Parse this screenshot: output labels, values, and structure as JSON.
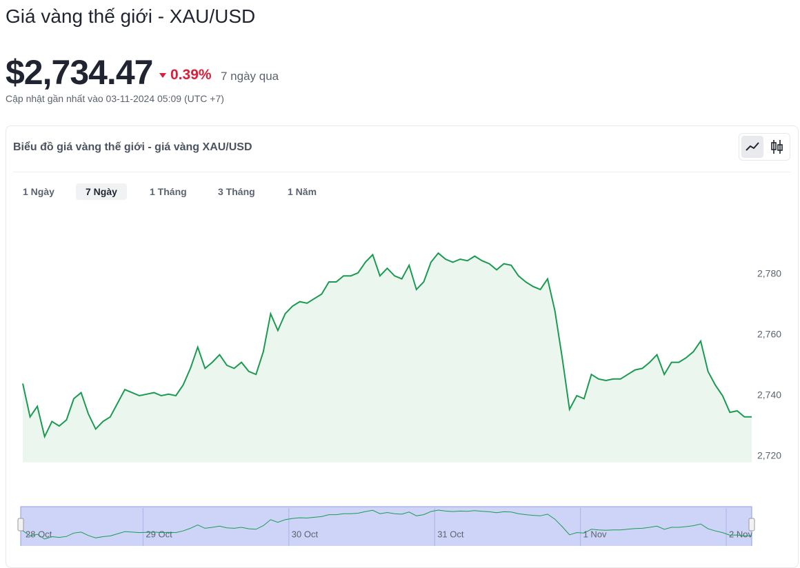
{
  "header": {
    "title": "Giá vàng thế giới - XAU/USD",
    "price": "$2,734.47",
    "change": "0.39%",
    "change_period": "7 ngày qua",
    "updated": "Cập nhật gần nhất vào 03-11-2024 05:09 (UTC +7)"
  },
  "card": {
    "title": "Biểu đồ giá vàng thế giới - giá vàng XAU/USD",
    "tabs": [
      "1 Ngày",
      "7 Ngày",
      "1 Tháng",
      "3 Tháng",
      "1 Năm"
    ],
    "active_tab": 1
  },
  "chart_data": {
    "type": "line",
    "color": "#1a9a50",
    "area_color": "#eaf6ee",
    "values": [
      2744,
      2733,
      2736.5,
      2726.5,
      2731.5,
      2730,
      2732,
      2739,
      2741,
      2734,
      2729,
      2731.5,
      2733,
      2737.5,
      2742,
      2741,
      2740,
      2740.5,
      2741,
      2740,
      2740.5,
      2740,
      2743.5,
      2749,
      2756,
      2749,
      2751,
      2753.5,
      2750,
      2749,
      2751,
      2748,
      2747,
      2754.5,
      2767,
      2761.5,
      2767,
      2769.5,
      2771,
      2770.5,
      2772,
      2773.5,
      2777.5,
      2777.5,
      2779.5,
      2779.5,
      2780.5,
      2784,
      2786.5,
      2779.5,
      2782,
      2779.5,
      2778.5,
      2783,
      2775,
      2777.5,
      2784,
      2787,
      2785,
      2784,
      2785,
      2784.5,
      2786,
      2784.5,
      2783.5,
      2781.5,
      2783.5,
      2783,
      2779.5,
      2777.5,
      2776,
      2775,
      2778.5,
      2768,
      2752.5,
      2735.5,
      2740,
      2739,
      2747,
      2745.5,
      2745,
      2745.5,
      2745.5,
      2747,
      2748.5,
      2749,
      2751,
      2753.5,
      2747,
      2751,
      2751,
      2752.5,
      2754.5,
      2758,
      2748,
      2743.5,
      2740,
      2734.5,
      2735,
      2733,
      2733
    ],
    "xlim": [
      0,
      100
    ],
    "ylim": [
      2718,
      2802
    ],
    "yticks": [
      {
        "value": 2720,
        "label": "2,720"
      },
      {
        "value": 2740,
        "label": "2,740"
      },
      {
        "value": 2760,
        "label": "2,760"
      },
      {
        "value": 2780,
        "label": "2,780"
      }
    ],
    "grid": false,
    "navigator_xticks": [
      {
        "value": 0,
        "label": "28 Oct"
      },
      {
        "value": 16.5,
        "label": "29 Oct"
      },
      {
        "value": 36.5,
        "label": "30 Oct"
      },
      {
        "value": 56.5,
        "label": "31 Oct"
      },
      {
        "value": 76.5,
        "label": "1 Nov"
      },
      {
        "value": 96.5,
        "label": "2 Nov"
      }
    ]
  }
}
